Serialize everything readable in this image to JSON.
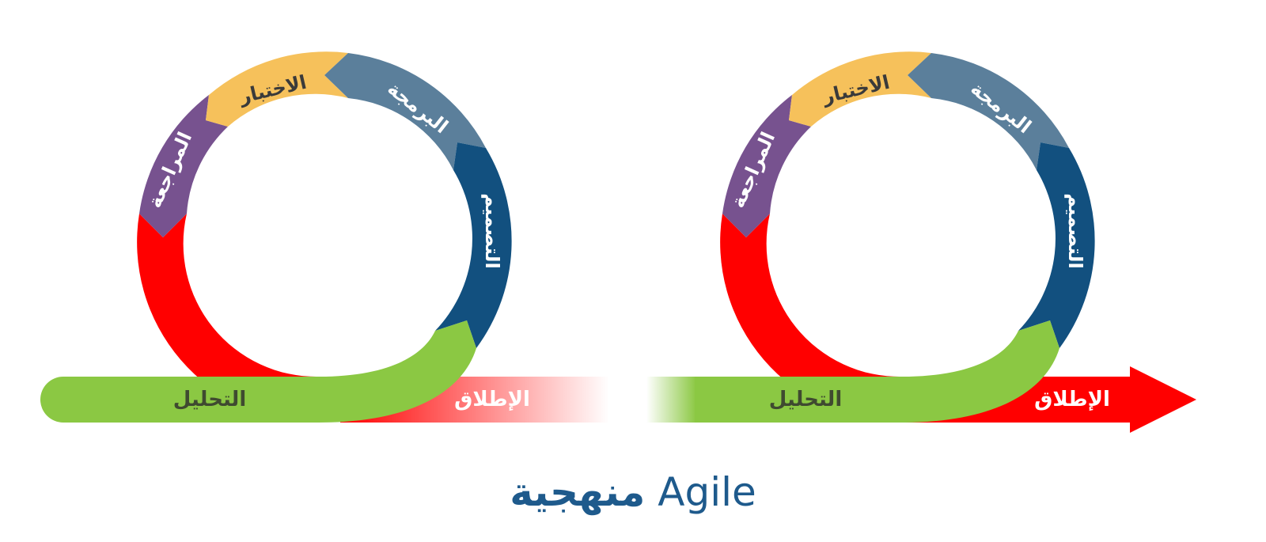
{
  "colors": {
    "analysis": "#8bc843",
    "launch": "#ff0000",
    "review": "#77528f",
    "testing": "#f6c15b",
    "programming": "#5b7f9b",
    "design": "#12507f",
    "red_loop": "#ff0000",
    "title": "#1e5a8c"
  },
  "cycles": [
    {
      "labels": {
        "analysis": "التحليل",
        "launch": "الإطلاق",
        "review": "المراجعة",
        "testing": "الاختبار",
        "programming": "البرمجة",
        "design": "التصميم"
      }
    },
    {
      "labels": {
        "analysis": "التحليل",
        "launch": "الإطلاق",
        "review": "المراجعة",
        "testing": "الاختبار",
        "programming": "البرمجة",
        "design": "التصميم"
      }
    }
  ],
  "title": {
    "arabic": "منهجية",
    "latin": "Agile"
  }
}
